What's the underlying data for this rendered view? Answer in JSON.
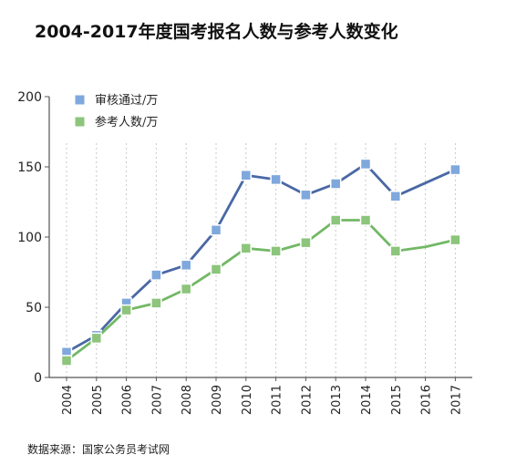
{
  "chart_data": {
    "type": "line",
    "title": "2004-2017年度国考报名人数与参考人数变化",
    "categories": [
      "2004",
      "2005",
      "2006",
      "2007",
      "2008",
      "2009",
      "2010",
      "2011",
      "2012",
      "2013",
      "2014",
      "2015",
      "2016",
      "2017"
    ],
    "ylim": [
      0,
      200
    ],
    "yticks": [
      "0",
      "50",
      "100",
      "150",
      "200"
    ],
    "grid": "vertical dashed",
    "legend": "top-left",
    "series": [
      {
        "name": "审核通过/万",
        "color": "#4A68A5",
        "marker_color": "#7FA8DC",
        "values": [
          18,
          30,
          53,
          73,
          80,
          105,
          144,
          141,
          130,
          138,
          152,
          129,
          null,
          148
        ],
        "markers": [
          true,
          true,
          true,
          true,
          true,
          true,
          true,
          true,
          true,
          true,
          true,
          true,
          false,
          true
        ]
      },
      {
        "name": "参考人数/万",
        "color": "#72B865",
        "marker_color": "#8CC57B",
        "values": [
          12,
          28,
          48,
          53,
          63,
          77,
          92,
          90,
          96,
          112,
          112,
          90,
          93,
          98
        ],
        "markers": [
          true,
          true,
          true,
          true,
          true,
          true,
          true,
          true,
          true,
          true,
          true,
          true,
          false,
          true
        ]
      }
    ]
  },
  "source": "数据来源：国家公务员考试网"
}
